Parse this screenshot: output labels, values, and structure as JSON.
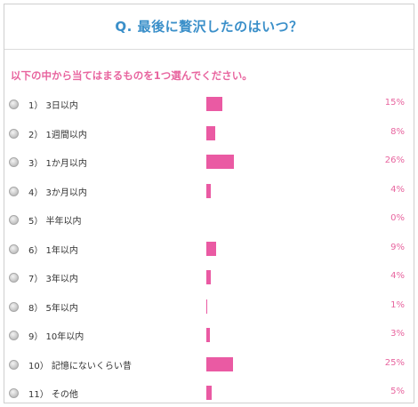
{
  "question": "Q. 最後に贅沢したのはいつ？",
  "instruction": "以下の中から当てはまるものを1つ選んでください。",
  "accent_color": "#ea5aa3",
  "title_color": "#3a8fc9",
  "options": [
    {
      "label": "1） 3日以内",
      "percent": 15,
      "percent_text": "15%"
    },
    {
      "label": "2） 1週間以内",
      "percent": 8,
      "percent_text": "8%"
    },
    {
      "label": "3） 1か月以内",
      "percent": 26,
      "percent_text": "26%"
    },
    {
      "label": "4） 3か月以内",
      "percent": 4,
      "percent_text": "4%"
    },
    {
      "label": "5） 半年以内",
      "percent": 0,
      "percent_text": "0%"
    },
    {
      "label": "6） 1年以内",
      "percent": 9,
      "percent_text": "9%"
    },
    {
      "label": "7） 3年以内",
      "percent": 4,
      "percent_text": "4%"
    },
    {
      "label": "8） 5年以内",
      "percent": 1,
      "percent_text": "1%"
    },
    {
      "label": "9） 10年以内",
      "percent": 3,
      "percent_text": "3%"
    },
    {
      "label": "10） 記憶にないくらい昔",
      "percent": 25,
      "percent_text": "25%"
    },
    {
      "label": "11） その他",
      "percent": 5,
      "percent_text": "5%"
    }
  ]
}
